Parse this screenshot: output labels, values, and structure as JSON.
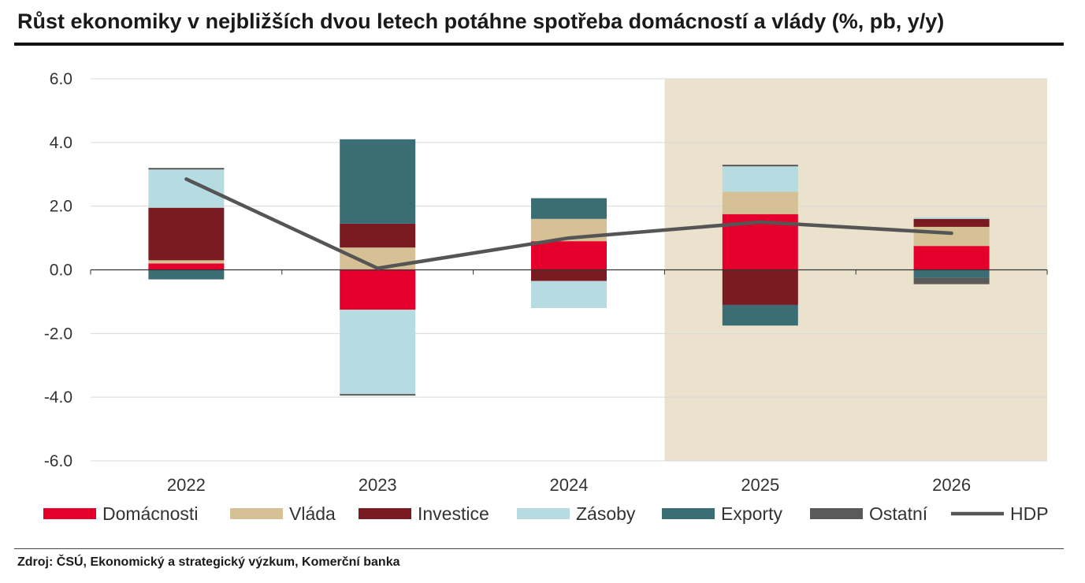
{
  "header": {
    "title": "Růst ekonomiky v nejbližších dvou letech potáhne spotřeba domácností a vlády (%, pb, y/y)"
  },
  "footer": {
    "source": "Zdroj: ČSÚ, Ekonomický a strategický výzkum, Komerční banka"
  },
  "chart_data": {
    "type": "bar",
    "stacked": true,
    "categories": [
      "2022",
      "2023",
      "2024",
      "2025",
      "2026"
    ],
    "ylim": [
      -6,
      6
    ],
    "yticks": [
      6,
      4,
      2,
      0,
      -2,
      -4,
      -6
    ],
    "ytick_labels": [
      "6.0",
      "4.0",
      "2.0",
      "0.0",
      "-2.0",
      "-4.0",
      "-6.0"
    ],
    "grid": true,
    "forecast_shading_categories": [
      "2025",
      "2026"
    ],
    "legend_position": "bottom",
    "series": [
      {
        "name": "Domácnosti",
        "color": "#e4002b",
        "values": [
          0.2,
          -1.25,
          0.9,
          1.75,
          0.75
        ]
      },
      {
        "name": "Vláda",
        "color": "#d6c096",
        "values": [
          0.1,
          0.7,
          0.7,
          0.7,
          0.6
        ]
      },
      {
        "name": "Investice",
        "color": "#7a1b21",
        "values": [
          1.65,
          0.75,
          -0.35,
          -1.1,
          0.25
        ]
      },
      {
        "name": "Zásoby",
        "color": "#b6dbe0",
        "values": [
          1.2,
          -2.65,
          -0.85,
          0.8,
          0.05
        ]
      },
      {
        "name": "Exporty",
        "color": "#3a6e74",
        "values": [
          -0.3,
          2.65,
          0.65,
          -0.65,
          -0.25
        ]
      },
      {
        "name": "Ostatní",
        "color": "#5a5a5a",
        "values": [
          0.05,
          -0.05,
          0.0,
          0.05,
          -0.2
        ]
      }
    ],
    "line_series": {
      "name": "HDP",
      "color": "#555555",
      "values": [
        2.85,
        0.05,
        1.0,
        1.5,
        1.15
      ]
    }
  }
}
